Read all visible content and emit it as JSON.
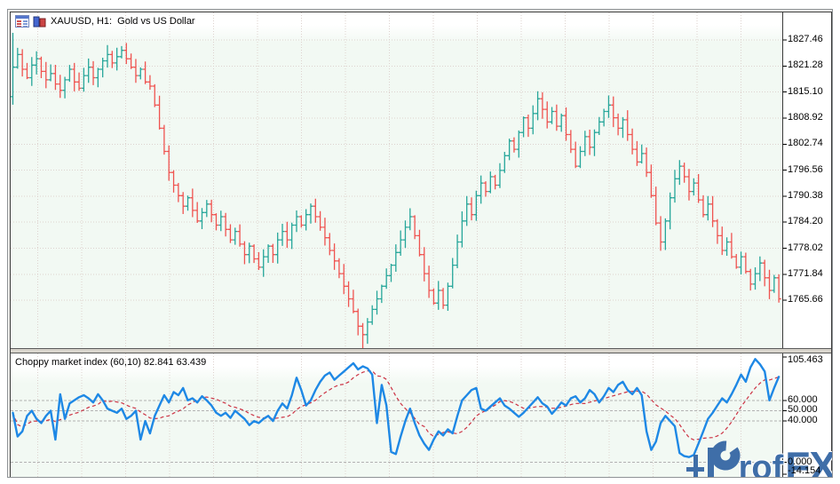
{
  "window": {
    "kind": "chart-window"
  },
  "main_chart": {
    "title": "XAUUSD, H1:  Gold vs US Dollar",
    "icons": [
      "market-watch-icon",
      "bar-chart-window-icon"
    ]
  },
  "indicator_panel": {
    "title": "Choppy market index (60,10) 82.841 63.439",
    "axis_labels": [
      {
        "text": "105.463",
        "edge": "top"
      },
      {
        "text": "60.000",
        "value": 60
      },
      {
        "text": "50.000",
        "value": 50
      },
      {
        "text": "40.000",
        "value": 40
      },
      {
        "text": "0.000",
        "value": 0
      },
      {
        "text": "-14.154",
        "edge": "bottom"
      }
    ]
  },
  "watermark": {
    "brand": "ProfFX",
    "part_rof": "rof",
    "part_fx": "FX"
  },
  "colors": {
    "bull": "#26a69a",
    "bear": "#ef5350",
    "indicator_line": "#1E88E5",
    "indicator_signal": "#CC3344",
    "grid": "#ddd2ce",
    "level": "#b2b2b2",
    "axis_line": "#3a3a3a",
    "panel_bg": "#f2f9f3",
    "logo_blue": "#3f6ea8"
  },
  "chart_data": {
    "type": "ohlc-bar",
    "symbol": "XAUUSD",
    "timeframe": "H1",
    "title": "Gold vs US Dollar",
    "price_axis_ticks": [
      1827.46,
      1821.28,
      1815.1,
      1808.92,
      1802.74,
      1796.56,
      1790.38,
      1784.2,
      1778.02,
      1771.84,
      1765.66
    ],
    "open_first": 1814,
    "wick_high_extra": {
      "0": 7
    },
    "wick_low_extra": {
      "74": 4
    },
    "closes": [
      1821,
      1824,
      1820.5,
      1818.5,
      1821.5,
      1823,
      1820,
      1818,
      1819.5,
      1817,
      1815.5,
      1818,
      1820.5,
      1817.5,
      1816,
      1819,
      1821,
      1818.5,
      1820.5,
      1822.5,
      1824,
      1822,
      1823.5,
      1825,
      1823,
      1821,
      1819,
      1820.5,
      1817.5,
      1816.5,
      1812,
      1806.5,
      1801,
      1796,
      1793,
      1790.5,
      1788,
      1790,
      1787,
      1784.5,
      1786.5,
      1788.5,
      1786,
      1783.5,
      1785.5,
      1782.5,
      1780,
      1782,
      1779,
      1776.5,
      1778.5,
      1775.5,
      1773.5,
      1776,
      1778.5,
      1776.5,
      1780,
      1782,
      1780,
      1783.5,
      1785.5,
      1783.5,
      1786,
      1788,
      1785.5,
      1783,
      1780.5,
      1777.5,
      1775,
      1772,
      1769,
      1766,
      1763,
      1759.5,
      1757.5,
      1760.5,
      1763.5,
      1766,
      1769,
      1771.5,
      1774,
      1777,
      1780,
      1783,
      1785.5,
      1781,
      1776.5,
      1772,
      1768,
      1765,
      1768,
      1764.5,
      1769,
      1774,
      1779.5,
      1784.5,
      1788.5,
      1786,
      1790.5,
      1793.5,
      1791.5,
      1795,
      1793,
      1796.5,
      1800,
      1803.5,
      1801.5,
      1805.5,
      1809,
      1806.5,
      1810,
      1813.5,
      1811,
      1808,
      1810.5,
      1807,
      1809.5,
      1805,
      1801.5,
      1797.5,
      1801,
      1804.5,
      1802,
      1805.5,
      1808,
      1810.5,
      1812,
      1809,
      1806.5,
      1808.5,
      1805,
      1801.5,
      1798.5,
      1800.5,
      1796,
      1790.5,
      1784,
      1779.5,
      1784.5,
      1790,
      1794.5,
      1797.5,
      1795,
      1791.5,
      1793.5,
      1789.5,
      1786,
      1788.5,
      1784.5,
      1781,
      1777.5,
      1779.5,
      1776,
      1773.5,
      1776,
      1772.5,
      1769.5,
      1772,
      1774.5,
      1771,
      1768,
      1771,
      1766
    ],
    "indicator": {
      "type": "line",
      "name": "Choppy market index",
      "params": "60,10",
      "last_values": [
        82.841,
        63.439
      ],
      "scale_max": 105.463,
      "scale_min": -14.154,
      "levels": [
        60,
        50,
        40,
        0
      ],
      "signal_smoothing": 10,
      "values": [
        48,
        25,
        30,
        45,
        50,
        42,
        38,
        45,
        50,
        22,
        66,
        42,
        57,
        60,
        63,
        65,
        62,
        58,
        66,
        60,
        52,
        50,
        48,
        52,
        42,
        45,
        50,
        22,
        40,
        28,
        45,
        55,
        65,
        58,
        68,
        65,
        72,
        60,
        62,
        58,
        64,
        60,
        55,
        48,
        45,
        48,
        43,
        50,
        46,
        42,
        36,
        40,
        38,
        42,
        45,
        40,
        50,
        57,
        52,
        65,
        82,
        70,
        55,
        60,
        70,
        78,
        84,
        87,
        80,
        84,
        88,
        92,
        96,
        90,
        93,
        91,
        85,
        38,
        75,
        55,
        10,
        8,
        25,
        40,
        52,
        38,
        26,
        18,
        12,
        22,
        30,
        26,
        32,
        28,
        45,
        60,
        65,
        70,
        72,
        52,
        50,
        54,
        58,
        62,
        55,
        52,
        48,
        44,
        48,
        53,
        58,
        63,
        57,
        54,
        47,
        52,
        58,
        55,
        62,
        64,
        58,
        62,
        70,
        66,
        58,
        64,
        72,
        68,
        75,
        78,
        70,
        66,
        72,
        65,
        30,
        12,
        20,
        38,
        45,
        40,
        35,
        9,
        6,
        5,
        7,
        18,
        30,
        42,
        48,
        55,
        62,
        58,
        66,
        75,
        85,
        78,
        92,
        100,
        95,
        88,
        60,
        72,
        82.841
      ]
    }
  }
}
